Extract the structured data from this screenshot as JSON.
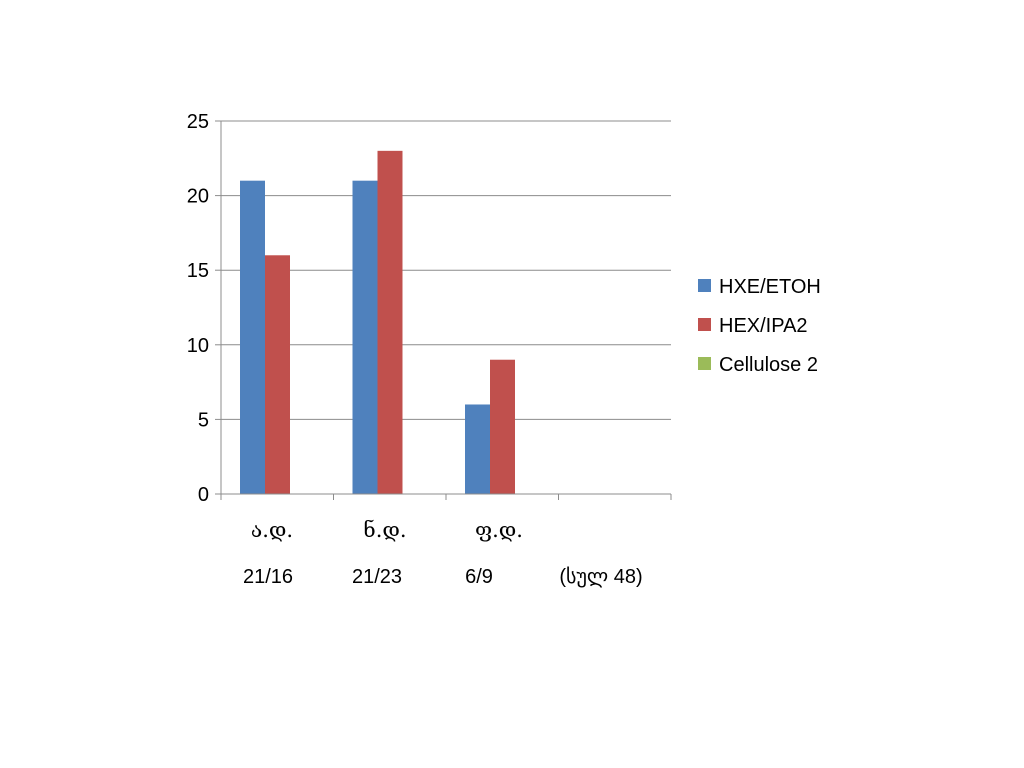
{
  "chart_data": {
    "type": "bar",
    "categories": [
      "ა.დ.",
      "ნ.დ.",
      "ფ.დ.",
      ""
    ],
    "category_sublabels": [
      "21/16",
      "21/23",
      "6/9",
      "(სულ 48)"
    ],
    "series": [
      {
        "name": "HXE/ETOH",
        "values": [
          21,
          21,
          6,
          0
        ],
        "color": "#4F81BD"
      },
      {
        "name": "HEX/IPA2",
        "values": [
          16,
          23,
          9,
          0
        ],
        "color": "#C0504D"
      },
      {
        "name": "Cellulose 2",
        "values": [
          0,
          0,
          0,
          0
        ],
        "color": "#9BBB59"
      }
    ],
    "ylim": [
      0,
      25
    ],
    "yticks": [
      0,
      5,
      10,
      15,
      20,
      25
    ],
    "grid": true,
    "legend_position": "right",
    "title": "",
    "xlabel": "",
    "ylabel": ""
  }
}
